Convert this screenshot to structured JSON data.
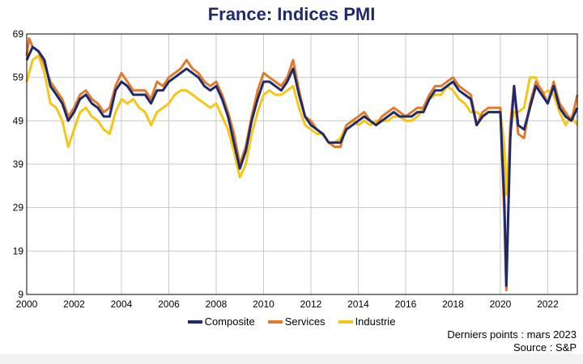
{
  "chart_data": {
    "type": "line",
    "title": "France: Indices PMI",
    "xlabel": "",
    "ylabel": "",
    "xlim": [
      2000,
      2023.25
    ],
    "ylim": [
      9,
      69
    ],
    "x_ticks": [
      "2000",
      "2002",
      "2004",
      "2006",
      "2008",
      "2010",
      "2012",
      "2014",
      "2016",
      "2018",
      "2020",
      "2022"
    ],
    "y_ticks": [
      9,
      19,
      29,
      39,
      49,
      59,
      69
    ],
    "grid": true,
    "legend_position": "bottom",
    "series": [
      {
        "name": "Composite",
        "color": "#1f2a6b",
        "points": [
          [
            2000.0,
            63
          ],
          [
            2000.25,
            66
          ],
          [
            2000.5,
            65
          ],
          [
            2000.75,
            63
          ],
          [
            2001.0,
            57
          ],
          [
            2001.25,
            55
          ],
          [
            2001.5,
            53
          ],
          [
            2001.75,
            49
          ],
          [
            2002.0,
            51
          ],
          [
            2002.25,
            54
          ],
          [
            2002.5,
            55
          ],
          [
            2002.75,
            53
          ],
          [
            2003.0,
            52
          ],
          [
            2003.25,
            50
          ],
          [
            2003.5,
            50
          ],
          [
            2003.75,
            56
          ],
          [
            2004.0,
            58
          ],
          [
            2004.25,
            57
          ],
          [
            2004.5,
            55
          ],
          [
            2004.75,
            55
          ],
          [
            2005.0,
            55
          ],
          [
            2005.25,
            53
          ],
          [
            2005.5,
            56
          ],
          [
            2005.75,
            56
          ],
          [
            2006.0,
            58
          ],
          [
            2006.25,
            59
          ],
          [
            2006.5,
            60
          ],
          [
            2006.75,
            61
          ],
          [
            2007.0,
            60
          ],
          [
            2007.25,
            59
          ],
          [
            2007.5,
            57
          ],
          [
            2007.75,
            56
          ],
          [
            2008.0,
            57
          ],
          [
            2008.25,
            54
          ],
          [
            2008.5,
            50
          ],
          [
            2008.75,
            44
          ],
          [
            2009.0,
            38
          ],
          [
            2009.25,
            42
          ],
          [
            2009.5,
            49
          ],
          [
            2009.75,
            54
          ],
          [
            2010.0,
            58
          ],
          [
            2010.25,
            58
          ],
          [
            2010.5,
            57
          ],
          [
            2010.75,
            56
          ],
          [
            2011.0,
            58
          ],
          [
            2011.25,
            61
          ],
          [
            2011.5,
            55
          ],
          [
            2011.75,
            50
          ],
          [
            2012.0,
            48
          ],
          [
            2012.25,
            47
          ],
          [
            2012.5,
            46
          ],
          [
            2012.75,
            44
          ],
          [
            2013.0,
            44
          ],
          [
            2013.25,
            44
          ],
          [
            2013.5,
            47
          ],
          [
            2013.75,
            48
          ],
          [
            2014.0,
            49
          ],
          [
            2014.25,
            50
          ],
          [
            2014.5,
            49
          ],
          [
            2014.75,
            48
          ],
          [
            2015.0,
            49
          ],
          [
            2015.25,
            50
          ],
          [
            2015.5,
            51
          ],
          [
            2015.75,
            50
          ],
          [
            2016.0,
            50
          ],
          [
            2016.25,
            50
          ],
          [
            2016.5,
            51
          ],
          [
            2016.75,
            51
          ],
          [
            2017.0,
            54
          ],
          [
            2017.25,
            56
          ],
          [
            2017.5,
            56
          ],
          [
            2017.75,
            57
          ],
          [
            2018.0,
            58
          ],
          [
            2018.25,
            56
          ],
          [
            2018.5,
            55
          ],
          [
            2018.75,
            54
          ],
          [
            2019.0,
            48
          ],
          [
            2019.25,
            50
          ],
          [
            2019.5,
            51
          ],
          [
            2019.75,
            51
          ],
          [
            2020.0,
            51
          ],
          [
            2020.17,
            30
          ],
          [
            2020.25,
            11
          ],
          [
            2020.42,
            45
          ],
          [
            2020.58,
            57
          ],
          [
            2020.75,
            48
          ],
          [
            2021.0,
            47
          ],
          [
            2021.25,
            52
          ],
          [
            2021.5,
            57
          ],
          [
            2021.75,
            55
          ],
          [
            2022.0,
            53
          ],
          [
            2022.25,
            57
          ],
          [
            2022.5,
            52
          ],
          [
            2022.75,
            50
          ],
          [
            2023.0,
            49
          ],
          [
            2023.25,
            52
          ]
        ]
      },
      {
        "name": "Services",
        "color": "#e07a2c",
        "points": [
          [
            2000.0,
            64
          ],
          [
            2000.1,
            68
          ],
          [
            2000.25,
            66
          ],
          [
            2000.5,
            65
          ],
          [
            2000.75,
            62
          ],
          [
            2001.0,
            58
          ],
          [
            2001.25,
            56
          ],
          [
            2001.5,
            54
          ],
          [
            2001.75,
            50
          ],
          [
            2002.0,
            52
          ],
          [
            2002.25,
            55
          ],
          [
            2002.5,
            56
          ],
          [
            2002.75,
            54
          ],
          [
            2003.0,
            53
          ],
          [
            2003.25,
            51
          ],
          [
            2003.5,
            52
          ],
          [
            2003.75,
            57
          ],
          [
            2004.0,
            60
          ],
          [
            2004.25,
            58
          ],
          [
            2004.5,
            56
          ],
          [
            2004.75,
            56
          ],
          [
            2005.0,
            56
          ],
          [
            2005.25,
            54
          ],
          [
            2005.5,
            58
          ],
          [
            2005.75,
            57
          ],
          [
            2006.0,
            59
          ],
          [
            2006.25,
            60
          ],
          [
            2006.5,
            61
          ],
          [
            2006.75,
            63
          ],
          [
            2007.0,
            61
          ],
          [
            2007.25,
            60
          ],
          [
            2007.5,
            58
          ],
          [
            2007.75,
            57
          ],
          [
            2008.0,
            58
          ],
          [
            2008.25,
            55
          ],
          [
            2008.5,
            51
          ],
          [
            2008.75,
            46
          ],
          [
            2009.0,
            39
          ],
          [
            2009.25,
            43
          ],
          [
            2009.5,
            50
          ],
          [
            2009.75,
            56
          ],
          [
            2010.0,
            60
          ],
          [
            2010.25,
            59
          ],
          [
            2010.5,
            58
          ],
          [
            2010.75,
            57
          ],
          [
            2011.0,
            59
          ],
          [
            2011.25,
            63
          ],
          [
            2011.5,
            56
          ],
          [
            2011.75,
            50
          ],
          [
            2012.0,
            49
          ],
          [
            2012.25,
            47
          ],
          [
            2012.5,
            46
          ],
          [
            2012.75,
            44
          ],
          [
            2013.0,
            43
          ],
          [
            2013.25,
            43
          ],
          [
            2013.5,
            48
          ],
          [
            2013.75,
            49
          ],
          [
            2014.0,
            50
          ],
          [
            2014.25,
            51
          ],
          [
            2014.5,
            49
          ],
          [
            2014.75,
            48
          ],
          [
            2015.0,
            50
          ],
          [
            2015.25,
            51
          ],
          [
            2015.5,
            52
          ],
          [
            2015.75,
            51
          ],
          [
            2016.0,
            50
          ],
          [
            2016.25,
            51
          ],
          [
            2016.5,
            52
          ],
          [
            2016.75,
            52
          ],
          [
            2017.0,
            55
          ],
          [
            2017.25,
            57
          ],
          [
            2017.5,
            57
          ],
          [
            2017.75,
            58
          ],
          [
            2018.0,
            59
          ],
          [
            2018.25,
            57
          ],
          [
            2018.5,
            56
          ],
          [
            2018.75,
            55
          ],
          [
            2019.0,
            48
          ],
          [
            2019.25,
            51
          ],
          [
            2019.5,
            52
          ],
          [
            2019.75,
            52
          ],
          [
            2020.0,
            52
          ],
          [
            2020.17,
            27
          ],
          [
            2020.25,
            10
          ],
          [
            2020.42,
            48
          ],
          [
            2020.58,
            57
          ],
          [
            2020.75,
            46
          ],
          [
            2021.0,
            45
          ],
          [
            2021.25,
            53
          ],
          [
            2021.5,
            58
          ],
          [
            2021.75,
            56
          ],
          [
            2022.0,
            53
          ],
          [
            2022.25,
            58
          ],
          [
            2022.5,
            53
          ],
          [
            2022.75,
            51
          ],
          [
            2023.0,
            49
          ],
          [
            2023.25,
            55
          ]
        ]
      },
      {
        "name": "Industrie",
        "color": "#f5c518",
        "points": [
          [
            2000.0,
            58
          ],
          [
            2000.25,
            63
          ],
          [
            2000.5,
            64
          ],
          [
            2000.75,
            60
          ],
          [
            2001.0,
            53
          ],
          [
            2001.25,
            52
          ],
          [
            2001.5,
            49
          ],
          [
            2001.75,
            43
          ],
          [
            2002.0,
            47
          ],
          [
            2002.25,
            51
          ],
          [
            2002.5,
            52
          ],
          [
            2002.75,
            50
          ],
          [
            2003.0,
            49
          ],
          [
            2003.25,
            47
          ],
          [
            2003.5,
            46
          ],
          [
            2003.75,
            51
          ],
          [
            2004.0,
            54
          ],
          [
            2004.25,
            53
          ],
          [
            2004.5,
            54
          ],
          [
            2004.75,
            52
          ],
          [
            2005.0,
            51
          ],
          [
            2005.25,
            48
          ],
          [
            2005.5,
            51
          ],
          [
            2005.75,
            52
          ],
          [
            2006.0,
            53
          ],
          [
            2006.25,
            55
          ],
          [
            2006.5,
            56
          ],
          [
            2006.75,
            56
          ],
          [
            2007.0,
            55
          ],
          [
            2007.25,
            54
          ],
          [
            2007.5,
            53
          ],
          [
            2007.75,
            52
          ],
          [
            2008.0,
            53
          ],
          [
            2008.25,
            50
          ],
          [
            2008.5,
            47
          ],
          [
            2008.75,
            42
          ],
          [
            2009.0,
            36
          ],
          [
            2009.25,
            39
          ],
          [
            2009.5,
            46
          ],
          [
            2009.75,
            51
          ],
          [
            2010.0,
            55
          ],
          [
            2010.25,
            56
          ],
          [
            2010.5,
            55
          ],
          [
            2010.75,
            55
          ],
          [
            2011.0,
            56
          ],
          [
            2011.25,
            57
          ],
          [
            2011.5,
            52
          ],
          [
            2011.75,
            48
          ],
          [
            2012.0,
            47
          ],
          [
            2012.25,
            46
          ],
          [
            2012.5,
            46
          ],
          [
            2012.75,
            44
          ],
          [
            2013.0,
            44
          ],
          [
            2013.25,
            45
          ],
          [
            2013.5,
            48
          ],
          [
            2013.75,
            49
          ],
          [
            2014.0,
            48
          ],
          [
            2014.25,
            49
          ],
          [
            2014.5,
            48
          ],
          [
            2014.75,
            49
          ],
          [
            2015.0,
            49
          ],
          [
            2015.25,
            49
          ],
          [
            2015.5,
            50
          ],
          [
            2015.75,
            50
          ],
          [
            2016.0,
            49
          ],
          [
            2016.25,
            49
          ],
          [
            2016.5,
            50
          ],
          [
            2016.75,
            52
          ],
          [
            2017.0,
            54
          ],
          [
            2017.25,
            55
          ],
          [
            2017.5,
            55
          ],
          [
            2017.75,
            57
          ],
          [
            2018.0,
            56
          ],
          [
            2018.25,
            54
          ],
          [
            2018.5,
            53
          ],
          [
            2018.75,
            51
          ],
          [
            2019.0,
            51
          ],
          [
            2019.25,
            50
          ],
          [
            2019.5,
            51
          ],
          [
            2019.75,
            51
          ],
          [
            2020.0,
            51
          ],
          [
            2020.17,
            43
          ],
          [
            2020.25,
            32
          ],
          [
            2020.42,
            47
          ],
          [
            2020.58,
            51
          ],
          [
            2020.75,
            51
          ],
          [
            2021.0,
            52
          ],
          [
            2021.25,
            59
          ],
          [
            2021.5,
            59
          ],
          [
            2021.75,
            55
          ],
          [
            2022.0,
            56
          ],
          [
            2022.25,
            55
          ],
          [
            2022.5,
            51
          ],
          [
            2022.75,
            48
          ],
          [
            2023.0,
            50
          ],
          [
            2023.25,
            48
          ]
        ]
      }
    ]
  },
  "footer": {
    "last_points": "Derniers points : mars 2023",
    "source": "Source :  S&P"
  }
}
